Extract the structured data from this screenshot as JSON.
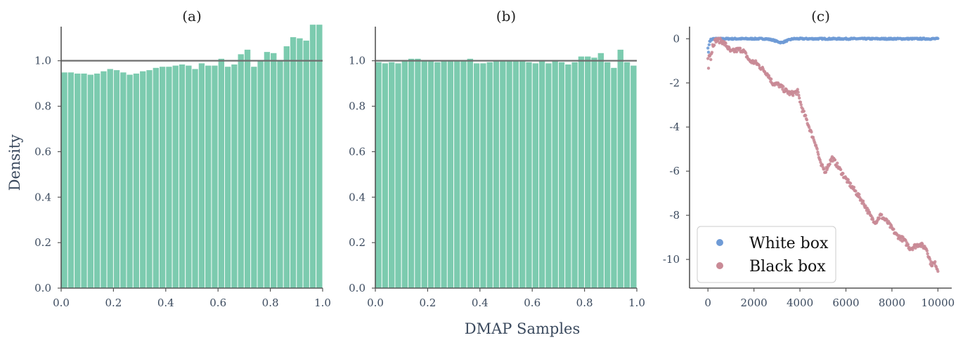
{
  "figure": {
    "ylabel": "Density",
    "xlabel": "DMAP Samples"
  },
  "colors": {
    "bar": "#7ccbaf",
    "bar_edge": "#ffffff",
    "reference_line": "#6e6e6e",
    "axis": "#555555",
    "white_box": "#6f9bd6",
    "black_box": "#c98a96"
  },
  "chart_data": [
    {
      "type": "bar",
      "title": "(a)",
      "xlim": [
        0.0,
        1.0
      ],
      "ylim": [
        0.0,
        1.15
      ],
      "reference_line": 1.0,
      "xticks": [
        "0.0",
        "0.2",
        "0.4",
        "0.6",
        "0.8",
        "1.0"
      ],
      "yticks": [
        "0.0",
        "0.2",
        "0.4",
        "0.6",
        "0.8",
        "1.0"
      ],
      "bins": 40,
      "values": [
        0.95,
        0.95,
        0.945,
        0.945,
        0.94,
        0.945,
        0.955,
        0.965,
        0.96,
        0.95,
        0.94,
        0.945,
        0.955,
        0.96,
        0.97,
        0.975,
        0.975,
        0.98,
        0.985,
        0.98,
        0.965,
        0.99,
        0.98,
        0.98,
        1.01,
        0.975,
        0.985,
        1.03,
        1.05,
        0.975,
        1.0,
        1.04,
        1.035,
        1.005,
        1.065,
        1.105,
        1.1,
        1.09,
        1.16,
        1.16
      ]
    },
    {
      "type": "bar",
      "title": "(b)",
      "xlim": [
        0.0,
        1.0
      ],
      "ylim": [
        0.0,
        1.15
      ],
      "reference_line": 1.0,
      "xticks": [
        "0.0",
        "0.2",
        "0.4",
        "0.6",
        "0.8",
        "1.0"
      ],
      "yticks": [
        "0.0",
        "0.2",
        "0.4",
        "0.6",
        "0.8",
        "1.0"
      ],
      "bins": 40,
      "values": [
        0.995,
        0.99,
        0.995,
        0.99,
        1.0,
        1.01,
        1.01,
        1.005,
        1.0,
        0.995,
        1.0,
        1.005,
        1.0,
        1.005,
        1.01,
        0.99,
        0.99,
        0.995,
        1.0,
        1.0,
        1.005,
        1.0,
        1.0,
        0.995,
        0.99,
        1.0,
        0.99,
        1.005,
        0.995,
        0.985,
        0.995,
        1.02,
        1.02,
        1.015,
        1.035,
        0.995,
        0.97,
        1.05,
        0.995,
        0.98
      ]
    },
    {
      "type": "scatter",
      "title": "(c)",
      "xlim": [
        -800,
        10600
      ],
      "ylim": [
        -11.3,
        0.55
      ],
      "xticks": [
        0,
        2000,
        4000,
        6000,
        8000,
        10000
      ],
      "yticks": [
        0,
        -2,
        -4,
        -6,
        -8,
        -10
      ],
      "legend": "lower-left",
      "series": [
        {
          "name": "White box",
          "anchors": [
            [
              0,
              -0.6
            ],
            [
              50,
              -0.3
            ],
            [
              120,
              -0.1
            ],
            [
              200,
              0.0
            ],
            [
              2500,
              0.0
            ],
            [
              2800,
              -0.05
            ],
            [
              3000,
              -0.12
            ],
            [
              3200,
              -0.18
            ],
            [
              3450,
              -0.08
            ],
            [
              3700,
              0.0
            ],
            [
              10000,
              0.0
            ]
          ]
        },
        {
          "name": "Black box",
          "anchors": [
            [
              0,
              -1.1
            ],
            [
              200,
              -0.3
            ],
            [
              350,
              -0.05
            ],
            [
              600,
              -0.1
            ],
            [
              800,
              -0.3
            ],
            [
              1000,
              -0.6
            ],
            [
              1300,
              -0.5
            ],
            [
              1500,
              -0.5
            ],
            [
              1700,
              -0.8
            ],
            [
              1800,
              -1.0
            ],
            [
              2100,
              -1.1
            ],
            [
              2300,
              -1.3
            ],
            [
              2600,
              -1.6
            ],
            [
              2800,
              -2.0
            ],
            [
              3100,
              -2.1
            ],
            [
              3300,
              -2.3
            ],
            [
              3600,
              -2.5
            ],
            [
              3900,
              -2.4
            ],
            [
              4100,
              -3.2
            ],
            [
              4300,
              -3.7
            ],
            [
              4500,
              -4.3
            ],
            [
              4700,
              -4.8
            ],
            [
              4900,
              -5.7
            ],
            [
              5100,
              -6.0
            ],
            [
              5400,
              -5.4
            ],
            [
              5600,
              -5.7
            ],
            [
              5900,
              -6.2
            ],
            [
              6100,
              -6.5
            ],
            [
              6400,
              -6.9
            ],
            [
              6800,
              -7.5
            ],
            [
              7100,
              -8.1
            ],
            [
              7300,
              -8.3
            ],
            [
              7500,
              -8.0
            ],
            [
              7800,
              -8.3
            ],
            [
              8200,
              -8.9
            ],
            [
              8500,
              -9.1
            ],
            [
              8800,
              -9.5
            ],
            [
              9200,
              -9.3
            ],
            [
              9500,
              -9.5
            ],
            [
              9700,
              -10.2
            ],
            [
              9900,
              -10.2
            ],
            [
              10000,
              -10.5
            ]
          ]
        }
      ]
    }
  ]
}
